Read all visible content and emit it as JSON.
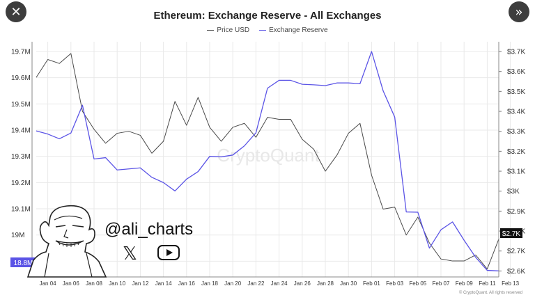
{
  "buttons": {
    "close_icon": "✕",
    "next_icon": "»"
  },
  "credit": "© CryptoQuant. All rights reserved",
  "branding": {
    "watermark": "CryptoQuant",
    "handle": "@ali_charts",
    "x_icon": "𝕏",
    "youtube_icon": "youtube-icon",
    "avatar": "meme-face-avatar"
  },
  "colors": {
    "price": "#4a4a4a",
    "reserve": "#5b54e6",
    "grid": "#e9e9e9",
    "axis_text": "#333333",
    "price_badge_bg": "#111111",
    "reserve_badge_bg": "#5b54e6"
  },
  "chart_data": {
    "type": "line",
    "title": "Ethereum: Exchange Reserve - All Exchanges",
    "legend_position": "top-center",
    "grid": true,
    "x_ticks": [
      "Jan 04",
      "Jan 06",
      "Jan 08",
      "Jan 10",
      "Jan 12",
      "Jan 14",
      "Jan 16",
      "Jan 18",
      "Jan 20",
      "Jan 22",
      "Jan 24",
      "Jan 26",
      "Jan 28",
      "Jan 30",
      "Feb 01",
      "Feb 03",
      "Feb 05",
      "Feb 07",
      "Feb 09",
      "Feb 11",
      "Feb 13"
    ],
    "x_range": [
      "Jan 03",
      "Feb 12"
    ],
    "y_left": {
      "ticks": [
        "19.7M",
        "19.6M",
        "19.5M",
        "19.4M",
        "19.3M",
        "19.2M",
        "19.1M",
        "19M",
        "18.9M"
      ],
      "range": [
        18.84,
        19.7
      ]
    },
    "y_right": {
      "ticks": [
        "$3.7K",
        "$3.6K",
        "$3.5K",
        "$3.4K",
        "$3.3K",
        "$3.2K",
        "$3.1K",
        "$3K",
        "$2.9K",
        "$2.8K",
        "$2.7K",
        "$2.6K"
      ],
      "range": [
        2570,
        3700
      ]
    },
    "last_values": {
      "reserve": "18.8M",
      "price": "$2.7K"
    },
    "series": [
      {
        "name": "Price USD",
        "axis": "right",
        "x": [
          "Jan 03",
          "Jan 04",
          "Jan 05",
          "Jan 06",
          "Jan 07",
          "Jan 08",
          "Jan 09",
          "Jan 10",
          "Jan 11",
          "Jan 12",
          "Jan 13",
          "Jan 14",
          "Jan 15",
          "Jan 16",
          "Jan 17",
          "Jan 18",
          "Jan 19",
          "Jan 20",
          "Jan 21",
          "Jan 22",
          "Jan 23",
          "Jan 24",
          "Jan 25",
          "Jan 26",
          "Jan 27",
          "Jan 28",
          "Jan 29",
          "Jan 30",
          "Jan 31",
          "Feb 01",
          "Feb 02",
          "Feb 03",
          "Feb 04",
          "Feb 05",
          "Feb 06",
          "Feb 07",
          "Feb 08",
          "Feb 09",
          "Feb 10",
          "Feb 11",
          "Feb 12"
        ],
        "values": [
          3570,
          3660,
          3640,
          3690,
          3400,
          3310,
          3240,
          3290,
          3300,
          3280,
          3190,
          3250,
          3450,
          3330,
          3470,
          3320,
          3250,
          3320,
          3340,
          3270,
          3370,
          3360,
          3360,
          3260,
          3210,
          3100,
          3180,
          3290,
          3340,
          3080,
          2910,
          2920,
          2780,
          2870,
          2740,
          2660,
          2650,
          2650,
          2680,
          2610,
          2760
        ]
      },
      {
        "name": "Exchange Reserve",
        "axis": "left",
        "x": [
          "Jan 03",
          "Jan 04",
          "Jan 05",
          "Jan 06",
          "Jan 07",
          "Jan 08",
          "Jan 09",
          "Jan 10",
          "Jan 11",
          "Jan 12",
          "Jan 13",
          "Jan 14",
          "Jan 15",
          "Jan 16",
          "Jan 17",
          "Jan 18",
          "Jan 19",
          "Jan 20",
          "Jan 21",
          "Jan 22",
          "Jan 23",
          "Jan 24",
          "Jan 25",
          "Jan 26",
          "Jan 27",
          "Jan 28",
          "Jan 29",
          "Jan 30",
          "Jan 31",
          "Feb 01",
          "Feb 02",
          "Feb 03",
          "Feb 04",
          "Feb 05",
          "Feb 06",
          "Feb 07",
          "Feb 08",
          "Feb 09",
          "Feb 10",
          "Feb 11",
          "Feb 12"
        ],
        "values": [
          19.397,
          19.385,
          19.367,
          19.389,
          19.495,
          19.29,
          19.295,
          19.248,
          19.252,
          19.256,
          19.22,
          19.2,
          19.168,
          19.213,
          19.242,
          19.3,
          19.298,
          19.305,
          19.34,
          19.39,
          19.56,
          19.59,
          19.59,
          19.575,
          19.573,
          19.57,
          19.58,
          19.58,
          19.577,
          19.7,
          19.55,
          19.45,
          19.088,
          19.087,
          18.95,
          19.02,
          19.05,
          18.98,
          18.915,
          18.865,
          18.863
        ]
      }
    ]
  }
}
